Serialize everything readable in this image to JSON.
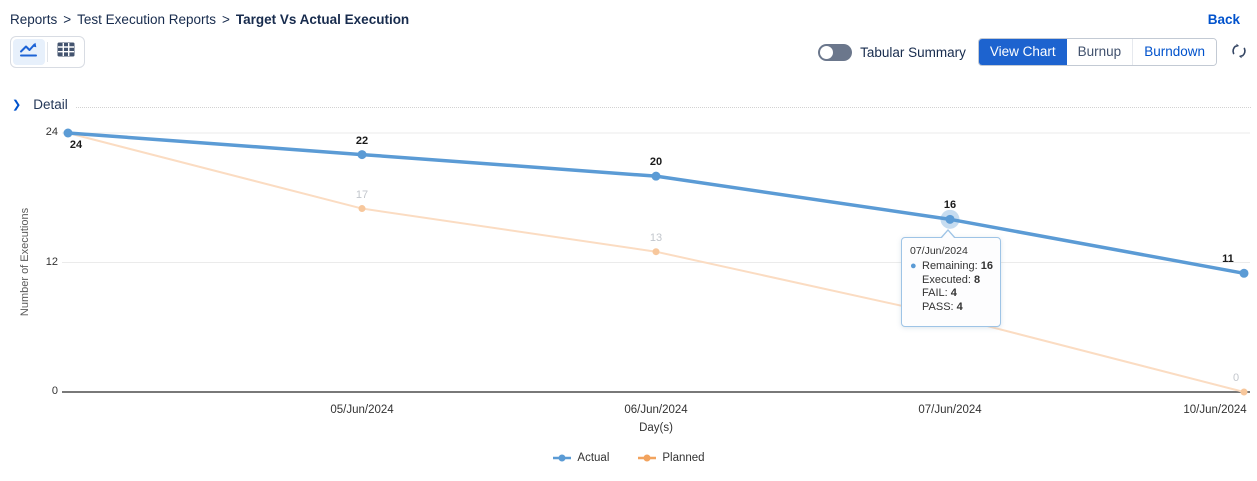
{
  "breadcrumb": {
    "items": [
      "Reports",
      "Test Execution Reports",
      "Target Vs Actual Execution"
    ],
    "separator": ">"
  },
  "back_label": "Back",
  "toolbar": {
    "chart_view_icon": "line-chart-icon",
    "table_view_icon": "table-grid-icon",
    "tabular_summary_label": "Tabular Summary",
    "tabular_summary_state": "off",
    "view_chart_label": "View Chart",
    "burnup_label": "Burnup",
    "burndown_label": "Burndown",
    "refresh_icon": "refresh-icon",
    "active_button_color": "#1d63cf"
  },
  "detail_section": {
    "label": "Detail",
    "state": "collapsed"
  },
  "chart_data": {
    "type": "line",
    "title": "",
    "categories": [
      "",
      "05/Jun/2024",
      "06/Jun/2024",
      "07/Jun/2024",
      "10/Jun/2024"
    ],
    "series": [
      {
        "name": "Actual",
        "values": [
          24,
          22,
          20,
          16,
          11
        ],
        "point_labels": [
          "24",
          "22",
          "20",
          "16",
          "11"
        ],
        "color": "#5b9bd5",
        "marker_color": "#5b9bd5",
        "label_color": "#1a1a1a"
      },
      {
        "name": "Planned",
        "values": [
          24,
          17,
          13,
          7,
          0
        ],
        "point_labels": [
          "",
          "17",
          "13",
          "",
          "0"
        ],
        "color": "#f2a35e",
        "line_color": "#fbdcc2",
        "marker_color": "#f7c79c",
        "label_color": "#c2c6cc"
      }
    ],
    "xlabel": "Day(s)",
    "ylabel": "Number of Executions",
    "ylim": [
      0,
      24
    ],
    "yticks": [
      0,
      12,
      24
    ],
    "grid": true,
    "legend_position": "bottom"
  },
  "tooltip": {
    "date": "07/Jun/2024",
    "anchor_series": "Actual",
    "anchor_index": 3,
    "rows": [
      {
        "label": "Remaining",
        "value": "16",
        "bullet": true
      },
      {
        "label": "Executed",
        "value": "8",
        "bullet": false
      },
      {
        "label": "FAIL",
        "value": "4",
        "bullet": false
      },
      {
        "label": "PASS",
        "value": "4",
        "bullet": false
      }
    ]
  }
}
